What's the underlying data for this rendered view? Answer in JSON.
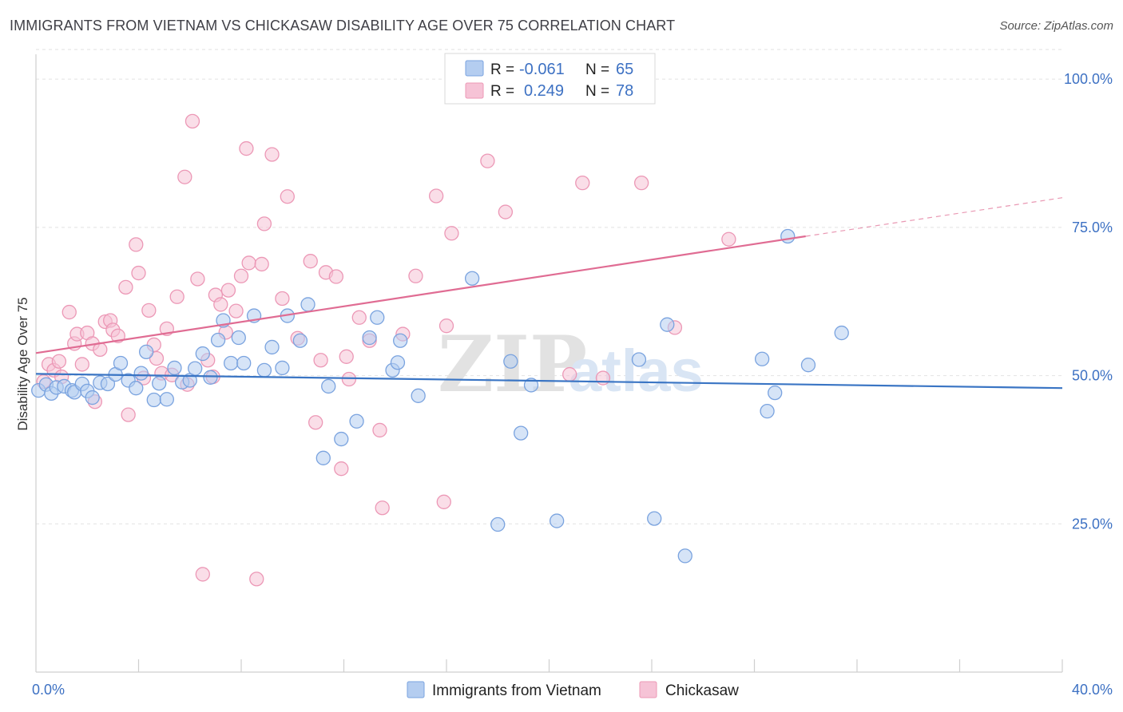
{
  "title": "IMMIGRANTS FROM VIETNAM VS CHICKASAW DISABILITY AGE OVER 75 CORRELATION CHART",
  "source": "Source: ZipAtlas.com",
  "watermark": {
    "zip": "ZIP",
    "atlas": "atlas"
  },
  "colors": {
    "blue_fill": "#b4cdf0",
    "blue_stroke": "#7aa3df",
    "blue_line": "#3a75c4",
    "pink_fill": "#f6c3d6",
    "pink_stroke": "#ec98b6",
    "pink_line": "#e06c93",
    "grid": "#e2e2e2",
    "axis_label": "#3d71c3"
  },
  "legend": {
    "rows": [
      {
        "r_label": "R =",
        "r_value": "-0.061",
        "n_label": "N =",
        "n_value": "65"
      },
      {
        "r_label": "R =",
        "r_value": "0.249",
        "n_label": "N =",
        "n_value": "78"
      }
    ]
  },
  "bottom_legend": [
    "Immigrants from Vietnam",
    "Chickasaw"
  ],
  "chart_data": {
    "type": "scatter",
    "ylabel": "Disability Age Over 75",
    "xlim": [
      0,
      40
    ],
    "ylim": [
      0,
      105
    ],
    "x_tick_labels": [
      {
        "value": 0,
        "label": "0.0%"
      },
      {
        "value": 40,
        "label": "40.0%"
      }
    ],
    "y_tick_labels": [
      {
        "value": 25,
        "label": "25.0%"
      },
      {
        "value": 50,
        "label": "50.0%"
      },
      {
        "value": 75,
        "label": "75.0%"
      },
      {
        "value": 100,
        "label": "100.0%"
      }
    ],
    "x_minor_ticks": [
      4,
      8,
      12,
      16,
      20,
      24,
      28,
      32,
      36,
      40
    ],
    "grid": true,
    "legend_position": "top-center",
    "series": [
      {
        "name": "Immigrants from Vietnam",
        "color": "#b4cdf0",
        "points": [
          [
            0.1,
            47.5
          ],
          [
            0.4,
            48.5
          ],
          [
            0.6,
            47.0
          ],
          [
            0.8,
            48.0
          ],
          [
            1.1,
            48.2
          ],
          [
            1.4,
            47.5
          ],
          [
            1.5,
            47.2
          ],
          [
            1.8,
            48.6
          ],
          [
            2.0,
            47.4
          ],
          [
            2.2,
            46.3
          ],
          [
            2.5,
            48.8
          ],
          [
            2.8,
            48.6
          ],
          [
            3.1,
            50.2
          ],
          [
            3.3,
            52.1
          ],
          [
            3.6,
            49.2
          ],
          [
            3.9,
            47.9
          ],
          [
            4.1,
            50.4
          ],
          [
            4.3,
            54.0
          ],
          [
            4.6,
            45.9
          ],
          [
            4.8,
            48.7
          ],
          [
            5.1,
            46.0
          ],
          [
            5.4,
            51.3
          ],
          [
            5.7,
            48.9
          ],
          [
            6.0,
            49.2
          ],
          [
            6.2,
            51.2
          ],
          [
            6.5,
            53.7
          ],
          [
            6.8,
            49.7
          ],
          [
            7.1,
            56.0
          ],
          [
            7.3,
            59.3
          ],
          [
            7.6,
            52.1
          ],
          [
            7.9,
            56.4
          ],
          [
            8.1,
            52.1
          ],
          [
            8.5,
            60.1
          ],
          [
            8.9,
            50.9
          ],
          [
            9.2,
            54.8
          ],
          [
            9.6,
            51.3
          ],
          [
            9.8,
            60.1
          ],
          [
            10.3,
            55.9
          ],
          [
            10.6,
            62.0
          ],
          [
            11.2,
            36.1
          ],
          [
            11.4,
            48.2
          ],
          [
            11.9,
            39.3
          ],
          [
            12.5,
            42.3
          ],
          [
            13.0,
            56.4
          ],
          [
            13.3,
            59.8
          ],
          [
            13.9,
            50.9
          ],
          [
            14.1,
            52.2
          ],
          [
            14.2,
            55.9
          ],
          [
            14.9,
            46.6
          ],
          [
            17.0,
            66.4
          ],
          [
            18.0,
            24.9
          ],
          [
            18.5,
            52.4
          ],
          [
            18.9,
            40.3
          ],
          [
            19.3,
            48.4
          ],
          [
            20.3,
            25.5
          ],
          [
            23.5,
            52.7
          ],
          [
            24.1,
            25.9
          ],
          [
            24.6,
            58.6
          ],
          [
            25.3,
            19.6
          ],
          [
            28.3,
            52.8
          ],
          [
            28.5,
            44.0
          ],
          [
            28.8,
            47.1
          ],
          [
            29.3,
            73.5
          ],
          [
            30.1,
            51.8
          ],
          [
            31.4,
            57.2
          ]
        ]
      },
      {
        "name": "Chickasaw",
        "color": "#f6c3d6",
        "points": [
          [
            0.3,
            49.0
          ],
          [
            0.5,
            51.9
          ],
          [
            0.7,
            50.9
          ],
          [
            0.9,
            52.4
          ],
          [
            1.0,
            49.8
          ],
          [
            1.3,
            60.7
          ],
          [
            1.5,
            55.4
          ],
          [
            1.6,
            57.0
          ],
          [
            1.8,
            51.9
          ],
          [
            2.0,
            57.2
          ],
          [
            2.2,
            55.4
          ],
          [
            2.3,
            45.6
          ],
          [
            2.5,
            54.4
          ],
          [
            2.7,
            59.1
          ],
          [
            2.9,
            59.3
          ],
          [
            3.0,
            57.7
          ],
          [
            3.2,
            56.7
          ],
          [
            3.5,
            64.9
          ],
          [
            3.6,
            43.4
          ],
          [
            3.9,
            72.1
          ],
          [
            4.0,
            67.3
          ],
          [
            4.2,
            49.6
          ],
          [
            4.4,
            61.0
          ],
          [
            4.6,
            55.2
          ],
          [
            4.7,
            52.9
          ],
          [
            4.9,
            50.4
          ],
          [
            5.1,
            57.9
          ],
          [
            5.3,
            50.1
          ],
          [
            5.5,
            63.3
          ],
          [
            5.8,
            83.5
          ],
          [
            5.9,
            48.5
          ],
          [
            6.1,
            92.9
          ],
          [
            6.3,
            66.3
          ],
          [
            6.5,
            16.5
          ],
          [
            6.7,
            52.6
          ],
          [
            6.9,
            49.8
          ],
          [
            7.0,
            63.6
          ],
          [
            7.2,
            62.0
          ],
          [
            7.4,
            57.3
          ],
          [
            7.5,
            64.4
          ],
          [
            7.8,
            60.9
          ],
          [
            8.0,
            66.8
          ],
          [
            8.2,
            88.3
          ],
          [
            8.3,
            69.0
          ],
          [
            8.6,
            15.7
          ],
          [
            8.8,
            68.8
          ],
          [
            8.9,
            75.6
          ],
          [
            9.2,
            87.3
          ],
          [
            9.6,
            63.0
          ],
          [
            9.8,
            80.2
          ],
          [
            10.2,
            56.3
          ],
          [
            10.7,
            69.3
          ],
          [
            10.9,
            42.1
          ],
          [
            11.1,
            52.6
          ],
          [
            11.3,
            67.4
          ],
          [
            11.7,
            66.7
          ],
          [
            11.9,
            34.3
          ],
          [
            12.1,
            53.2
          ],
          [
            12.2,
            49.4
          ],
          [
            12.6,
            59.8
          ],
          [
            13.0,
            55.9
          ],
          [
            13.4,
            40.8
          ],
          [
            13.5,
            27.7
          ],
          [
            14.3,
            57.0
          ],
          [
            14.8,
            66.8
          ],
          [
            15.6,
            80.3
          ],
          [
            15.9,
            28.7
          ],
          [
            16.0,
            58.4
          ],
          [
            16.2,
            74.0
          ],
          [
            17.1,
            100.2
          ],
          [
            17.6,
            86.2
          ],
          [
            18.3,
            77.6
          ],
          [
            20.8,
            50.2
          ],
          [
            21.3,
            82.5
          ],
          [
            22.1,
            49.6
          ],
          [
            23.6,
            82.5
          ],
          [
            24.9,
            58.1
          ],
          [
            27.0,
            73.0
          ]
        ]
      }
    ],
    "trend_lines": [
      {
        "series": "Immigrants from Vietnam",
        "x_start": 0,
        "y_start": 50.3,
        "x_end": 40,
        "y_end": 47.9
      },
      {
        "series": "Chickasaw",
        "x_start": 0,
        "y_start": 53.8,
        "x_end": 30,
        "y_end": 73.5,
        "dashed_to_x": 40,
        "dashed_to_y": 80.0
      }
    ]
  }
}
